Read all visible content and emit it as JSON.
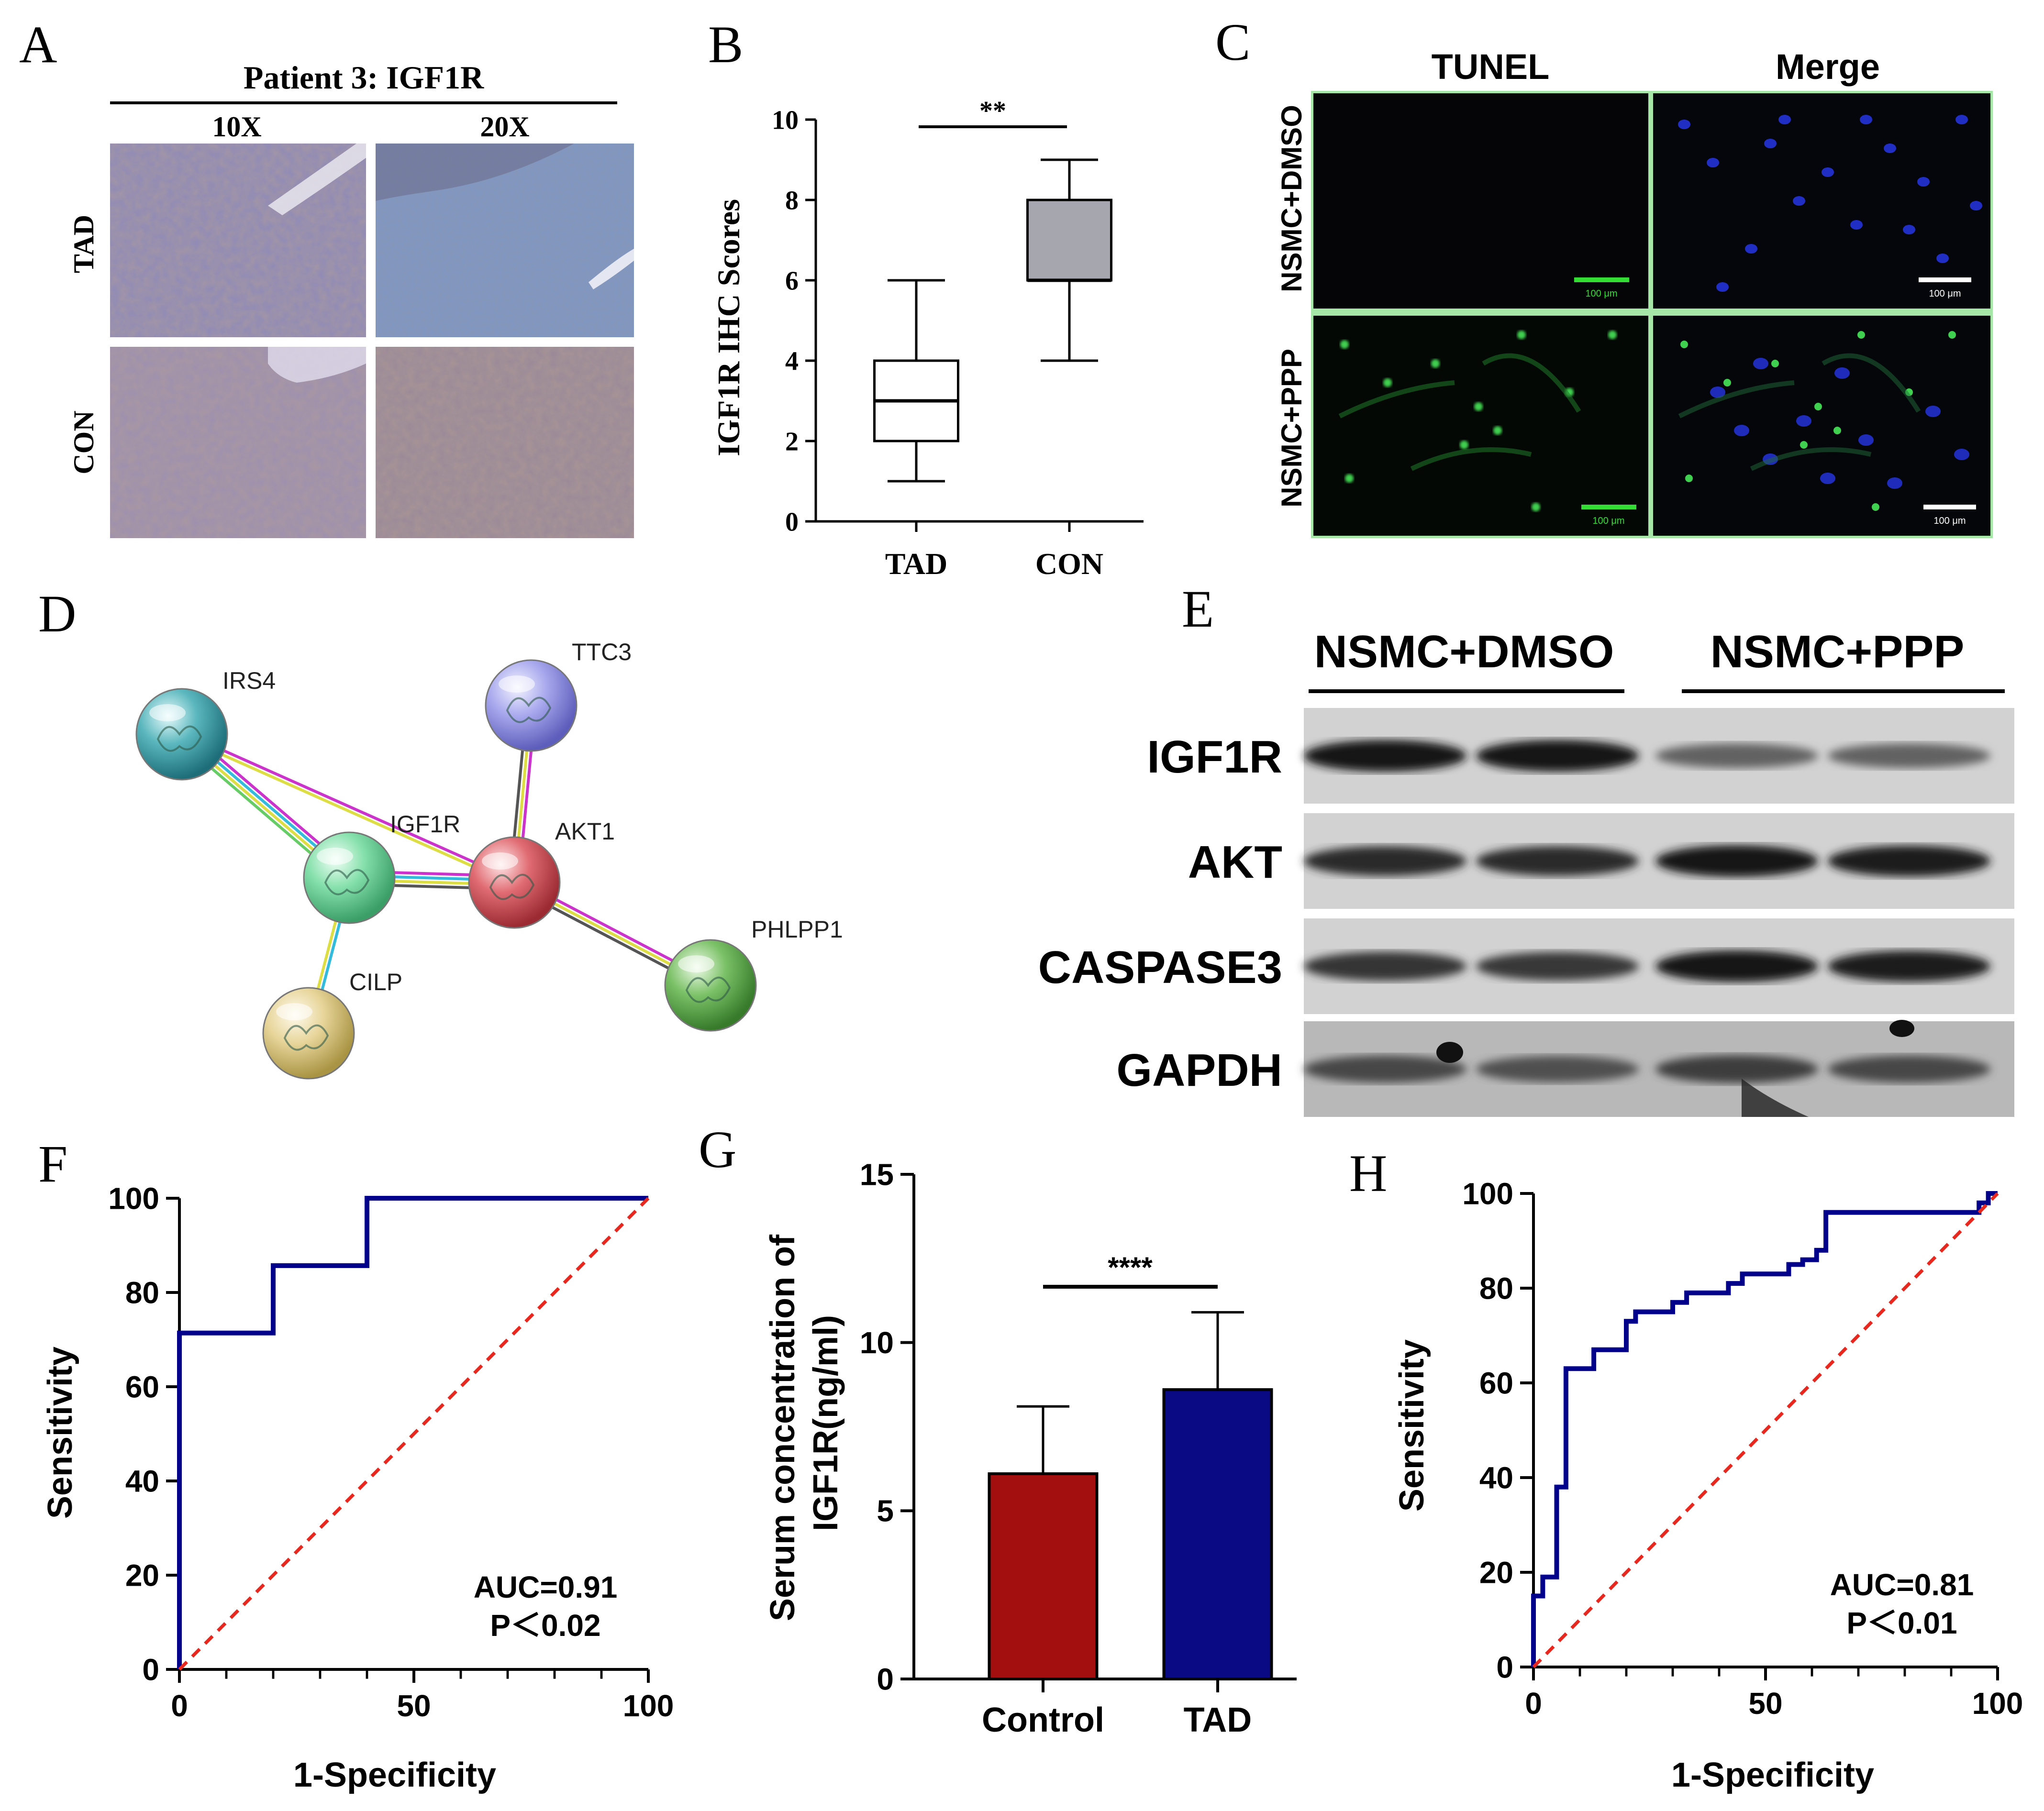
{
  "panel_letters": [
    "A",
    "B",
    "C",
    "D",
    "E",
    "F",
    "G",
    "H"
  ],
  "panel_a": {
    "title": "Patient 3: IGF1R",
    "columns": [
      "10X",
      "20X"
    ],
    "rows": [
      "TAD",
      "CON"
    ]
  },
  "panel_c": {
    "columns": [
      "TUNEL",
      "Merge"
    ],
    "rows": [
      "NSMC+DMSO",
      "NSMC+PPP"
    ],
    "scale_bar_label": "100 μm",
    "colors": {
      "background": "#050508",
      "nuclei": "#2433d8",
      "tunel": "#3fd04f",
      "scale_bar_green": "#33dd33"
    }
  },
  "panel_d": {
    "nodes": [
      {
        "label": "IRS4",
        "color": "#3f9fa6"
      },
      {
        "label": "TTC3",
        "color": "#9a9ae4"
      },
      {
        "label": "IGF1R",
        "color": "#6ed49a"
      },
      {
        "label": "AKT1",
        "color": "#d95a62"
      },
      {
        "label": "CILP",
        "color": "#e0cd88"
      },
      {
        "label": "PHLPP1",
        "color": "#6db55a"
      }
    ],
    "edges": [
      {
        "from": "IRS4",
        "to": "IGF1R",
        "colors": [
          "#cc33cc",
          "#33bbdd",
          "#dddd44",
          "#66cc66"
        ]
      },
      {
        "from": "IRS4",
        "to": "AKT1",
        "colors": [
          "#cc33cc",
          "#dddd44"
        ]
      },
      {
        "from": "IGF1R",
        "to": "AKT1",
        "colors": [
          "#cc33cc",
          "#33bbdd",
          "#dddd44",
          "#555555"
        ]
      },
      {
        "from": "TTC3",
        "to": "AKT1",
        "colors": [
          "#cc33cc",
          "#dddd44",
          "#555555"
        ]
      },
      {
        "from": "AKT1",
        "to": "PHLPP1",
        "colors": [
          "#cc33cc",
          "#dddd44",
          "#555555"
        ]
      },
      {
        "from": "IGF1R",
        "to": "CILP",
        "colors": [
          "#33bbdd",
          "#dddd44"
        ]
      }
    ]
  },
  "panel_e": {
    "groups": [
      "NSMC+DMSO",
      "NSMC+PPP"
    ],
    "proteins": [
      "IGF1R",
      "AKT",
      "CASPASE3",
      "GAPDH"
    ],
    "band_intensity": [
      [
        0.95,
        0.95,
        0.55,
        0.55
      ],
      [
        0.85,
        0.85,
        0.95,
        0.92
      ],
      [
        0.8,
        0.78,
        0.95,
        0.92
      ],
      [
        0.7,
        0.65,
        0.75,
        0.7
      ]
    ]
  },
  "chart_data": [
    {
      "panel": "B",
      "type": "box",
      "categories": [
        "TAD",
        "CON"
      ],
      "boxes": [
        {
          "min": 1,
          "q1": 2,
          "median": 3,
          "q3": 4,
          "max": 6,
          "fill": "#ffffff"
        },
        {
          "min": 4,
          "q1": 6,
          "median": 6,
          "q3": 8,
          "max": 9,
          "fill": "#a6a6ae"
        }
      ],
      "ylabel": "IGF1R IHC Scores",
      "ylim": [
        0,
        10
      ],
      "yticks": [
        "0",
        "2",
        "4",
        "6",
        "8",
        "10"
      ],
      "significance": "**"
    },
    {
      "panel": "F",
      "type": "line",
      "xlabel": "1-Specificity",
      "ylabel": "Sensitivity",
      "xlim": [
        0,
        100
      ],
      "ylim": [
        0,
        100
      ],
      "xticks": [
        "0",
        "50",
        "100"
      ],
      "yticks": [
        "0",
        "20",
        "40",
        "60",
        "80",
        "100"
      ],
      "series": [
        {
          "style": "step",
          "color": "#00008b",
          "x": [
            0,
            0,
            20,
            20,
            40,
            40,
            100
          ],
          "y": [
            0,
            71.4,
            71.4,
            85.7,
            85.7,
            100,
            100
          ]
        },
        {
          "style": "dashed",
          "color": "#e8281e",
          "x": [
            0,
            100
          ],
          "y": [
            0,
            100
          ]
        }
      ],
      "annotations": [
        "AUC=0.91",
        "P＜0.02"
      ]
    },
    {
      "panel": "G",
      "type": "bar",
      "categories": [
        "Control",
        "TAD"
      ],
      "values": [
        6.1,
        8.6
      ],
      "errors": [
        2.0,
        2.3
      ],
      "colors": [
        "#a30f0f",
        "#0a0a85"
      ],
      "ylabel": "Serum concentration of IGF1R(ng/ml)",
      "ylim": [
        0,
        15
      ],
      "yticks": [
        "0",
        "5",
        "10",
        "15"
      ],
      "significance": "****"
    },
    {
      "panel": "H",
      "type": "line",
      "xlabel": "1-Specificity",
      "ylabel": "Sensitivity",
      "xlim": [
        0,
        100
      ],
      "ylim": [
        0,
        100
      ],
      "xticks": [
        "0",
        "50",
        "100"
      ],
      "yticks": [
        "0",
        "20",
        "40",
        "60",
        "80",
        "100"
      ],
      "series": [
        {
          "style": "step",
          "color": "#00008b",
          "x": [
            0,
            0,
            2,
            2,
            5,
            5,
            7,
            7,
            10,
            10,
            13,
            13,
            20,
            20,
            22,
            22,
            30,
            30,
            33,
            33,
            42,
            42,
            45,
            45,
            55,
            55,
            58,
            58,
            61,
            61,
            63,
            63,
            96,
            96,
            98,
            98,
            100
          ],
          "y": [
            0,
            15,
            15,
            19,
            19,
            38,
            38,
            63,
            63,
            63,
            63,
            67,
            67,
            73,
            73,
            75,
            75,
            77,
            77,
            79,
            79,
            81,
            81,
            83,
            83,
            85,
            85,
            86,
            86,
            88,
            88,
            96,
            96,
            98,
            98,
            100,
            100
          ]
        },
        {
          "style": "dashed",
          "color": "#e8281e",
          "x": [
            0,
            100
          ],
          "y": [
            0,
            100
          ]
        }
      ],
      "annotations": [
        "AUC=0.81",
        "P＜0.01"
      ]
    }
  ]
}
